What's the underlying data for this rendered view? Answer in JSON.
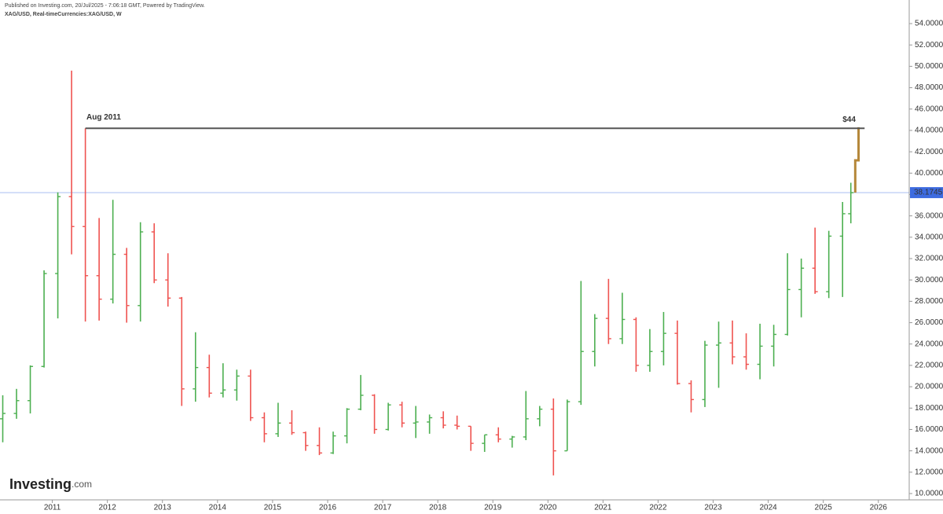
{
  "chart_data": {
    "type": "ohlc",
    "title": "Published on Investing.com, 20/Jul/2025 - 7:06:18 GMT, Powered by TradingView.",
    "subtitle": "XAG/USD, Real-timeCurrencies:XAG/USD, W",
    "watermark": [
      "Investing",
      ".com"
    ],
    "up_color": "#4caf50",
    "down_color": "#ef5350",
    "xlim": [
      2010.05,
      2026.56
    ],
    "xticks": [
      2011,
      2012,
      2013,
      2014,
      2015,
      2016,
      2017,
      2018,
      2019,
      2020,
      2021,
      2022,
      2023,
      2024,
      2025,
      2026
    ],
    "ylim": [
      9.41,
      56.21
    ],
    "yticks": [
      {
        "value": 10,
        "label": "10.0000"
      },
      {
        "value": 12,
        "label": "12.0000"
      },
      {
        "value": 14,
        "label": "14.0000"
      },
      {
        "value": 16,
        "label": "16.0000"
      },
      {
        "value": 18,
        "label": "18.0000"
      },
      {
        "value": 20,
        "label": "20.0000"
      },
      {
        "value": 22,
        "label": "22.0000"
      },
      {
        "value": 24,
        "label": "24.0000"
      },
      {
        "value": 26,
        "label": "26.0000"
      },
      {
        "value": 28,
        "label": "28.0000"
      },
      {
        "value": 30,
        "label": "30.0000"
      },
      {
        "value": 32,
        "label": "32.0000"
      },
      {
        "value": 34,
        "label": "34.0000"
      },
      {
        "value": 36,
        "label": "36.0000"
      },
      {
        "value": 38,
        "label": "38.0000"
      },
      {
        "value": 40,
        "label": "40.0000"
      },
      {
        "value": 42,
        "label": "42.0000"
      },
      {
        "value": 44,
        "label": "44.0000"
      },
      {
        "value": 46,
        "label": "46.0000"
      },
      {
        "value": 48,
        "label": "48.0000"
      },
      {
        "value": 50,
        "label": "50.0000"
      },
      {
        "value": 52,
        "label": "52.0000"
      },
      {
        "value": 54,
        "label": "54.0000"
      }
    ],
    "ohlc": {
      "x": [
        2010.1,
        2010.35,
        2010.6,
        2010.85,
        2011.1,
        2011.35,
        2011.6,
        2011.85,
        2012.1,
        2012.35,
        2012.6,
        2012.85,
        2013.1,
        2013.35,
        2013.6,
        2013.85,
        2014.1,
        2014.35,
        2014.6,
        2014.85,
        2015.1,
        2015.35,
        2015.6,
        2015.85,
        2016.1,
        2016.35,
        2016.6,
        2016.85,
        2017.1,
        2017.35,
        2017.6,
        2017.85,
        2018.1,
        2018.35,
        2018.6,
        2018.85,
        2019.1,
        2019.35,
        2019.6,
        2019.85,
        2020.1,
        2020.35,
        2020.6,
        2020.85,
        2021.1,
        2021.35,
        2021.6,
        2021.85,
        2022.1,
        2022.35,
        2022.6,
        2022.85,
        2023.1,
        2023.35,
        2023.6,
        2023.85,
        2024.1,
        2024.35,
        2024.6,
        2024.85,
        2025.1,
        2025.35,
        2025.5
      ],
      "open": [
        17.0,
        17.5,
        18.7,
        21.9,
        30.6,
        37.8,
        35.0,
        30.4,
        28.2,
        32.4,
        27.6,
        34.5,
        30.0,
        28.3,
        19.8,
        21.8,
        19.4,
        19.7,
        21.0,
        17.1,
        15.6,
        16.6,
        15.7,
        14.5,
        13.8,
        15.4,
        17.9,
        19.2,
        16.0,
        18.3,
        16.6,
        16.7,
        17.1,
        16.4,
        16.3,
        14.7,
        15.5,
        15.1,
        15.3,
        17.0,
        17.9,
        14.0,
        18.6,
        23.3,
        26.4,
        24.5,
        26.3,
        22.0,
        23.3,
        25.0,
        20.3,
        18.8,
        23.9,
        24.1,
        22.8,
        22.1,
        23.8,
        24.9,
        29.1,
        31.1,
        28.9,
        34.1,
        36.2
      ],
      "high": [
        19.2,
        19.8,
        22.0,
        30.9,
        38.2,
        49.6,
        44.2,
        35.8,
        37.5,
        33.0,
        35.4,
        35.3,
        32.5,
        28.4,
        25.1,
        23.0,
        22.2,
        21.6,
        21.6,
        17.6,
        18.5,
        17.8,
        15.8,
        16.2,
        15.8,
        18.0,
        21.1,
        19.3,
        18.5,
        18.6,
        18.2,
        17.4,
        17.7,
        17.3,
        16.3,
        15.5,
        16.2,
        15.4,
        19.6,
        18.2,
        18.9,
        18.8,
        29.9,
        26.8,
        30.1,
        28.8,
        26.5,
        25.4,
        27.0,
        26.2,
        20.6,
        24.3,
        26.1,
        26.2,
        25.0,
        25.9,
        25.8,
        32.5,
        32.0,
        34.9,
        34.6,
        37.3,
        39.1
      ],
      "low": [
        14.8,
        17.0,
        17.5,
        21.8,
        26.4,
        32.4,
        26.1,
        26.2,
        27.8,
        26.0,
        26.1,
        29.7,
        27.5,
        18.2,
        18.6,
        19.0,
        19.0,
        18.7,
        16.8,
        14.8,
        15.3,
        15.5,
        14.0,
        13.6,
        13.7,
        14.7,
        17.8,
        15.6,
        15.9,
        16.2,
        15.2,
        15.6,
        16.1,
        16.0,
        14.0,
        13.9,
        14.8,
        14.3,
        15.0,
        16.3,
        11.7,
        14.0,
        18.3,
        21.9,
        24.0,
        24.0,
        21.4,
        21.4,
        22.0,
        20.2,
        17.6,
        18.1,
        19.9,
        22.1,
        21.6,
        20.7,
        21.9,
        24.8,
        26.5,
        28.7,
        28.3,
        28.4,
        35.3
      ],
      "close": [
        17.5,
        18.7,
        21.9,
        30.6,
        37.8,
        35.0,
        30.4,
        28.2,
        32.4,
        27.6,
        34.5,
        30.0,
        28.3,
        19.8,
        21.8,
        19.4,
        19.7,
        21.0,
        17.1,
        15.6,
        16.6,
        15.7,
        14.5,
        13.8,
        15.4,
        17.9,
        19.2,
        16.0,
        18.3,
        16.6,
        16.7,
        17.1,
        16.4,
        16.3,
        14.7,
        15.5,
        15.1,
        15.3,
        17.0,
        17.9,
        14.0,
        18.6,
        23.3,
        26.4,
        24.5,
        26.3,
        22.0,
        23.3,
        25.0,
        20.3,
        18.8,
        23.9,
        24.1,
        22.8,
        22.1,
        23.8,
        24.9,
        29.1,
        31.1,
        28.9,
        34.1,
        36.2,
        38.17
      ]
    },
    "projection": {
      "color": "#b5873a",
      "x": [
        2025.58,
        2025.58,
        2025.64,
        2025.64
      ],
      "values": [
        38.17,
        41.2,
        41.2,
        44.3
      ]
    },
    "reference_line": {
      "y": 44.2,
      "x_start": 2011.6,
      "x_end": 2025.75,
      "color": "#555555"
    },
    "annotations": [
      {
        "text": "Aug 2011",
        "x": 2011.62,
        "y": 44.2
      },
      {
        "text": "$44",
        "x": 2025.35,
        "y": 44.2
      }
    ],
    "current_price": {
      "value": 38.1745,
      "color": "#3d6be0"
    }
  }
}
